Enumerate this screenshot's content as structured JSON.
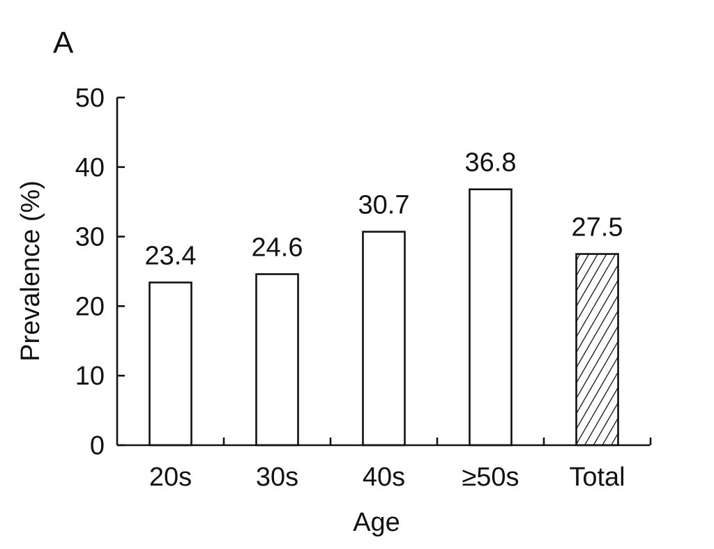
{
  "panel_label": "A",
  "chart_data": {
    "type": "bar",
    "categories": [
      "20s",
      "30s",
      "40s",
      "≥50s",
      "Total"
    ],
    "values": [
      23.4,
      24.6,
      30.7,
      36.8,
      27.5
    ],
    "data_labels": [
      "23.4",
      "24.6",
      "30.7",
      "36.8",
      "27.5"
    ],
    "bar_fill": [
      "plain",
      "plain",
      "plain",
      "plain",
      "hatched"
    ],
    "xlabel": "Age",
    "ylabel": "Prevalence (%)",
    "ylim": [
      0,
      50
    ],
    "yticks": [
      0,
      10,
      20,
      30,
      40,
      50
    ],
    "grid": false,
    "legend": "none",
    "colors": {
      "bar_fill": "#ffffff",
      "bar_stroke": "#111111",
      "axis": "#111111"
    }
  }
}
